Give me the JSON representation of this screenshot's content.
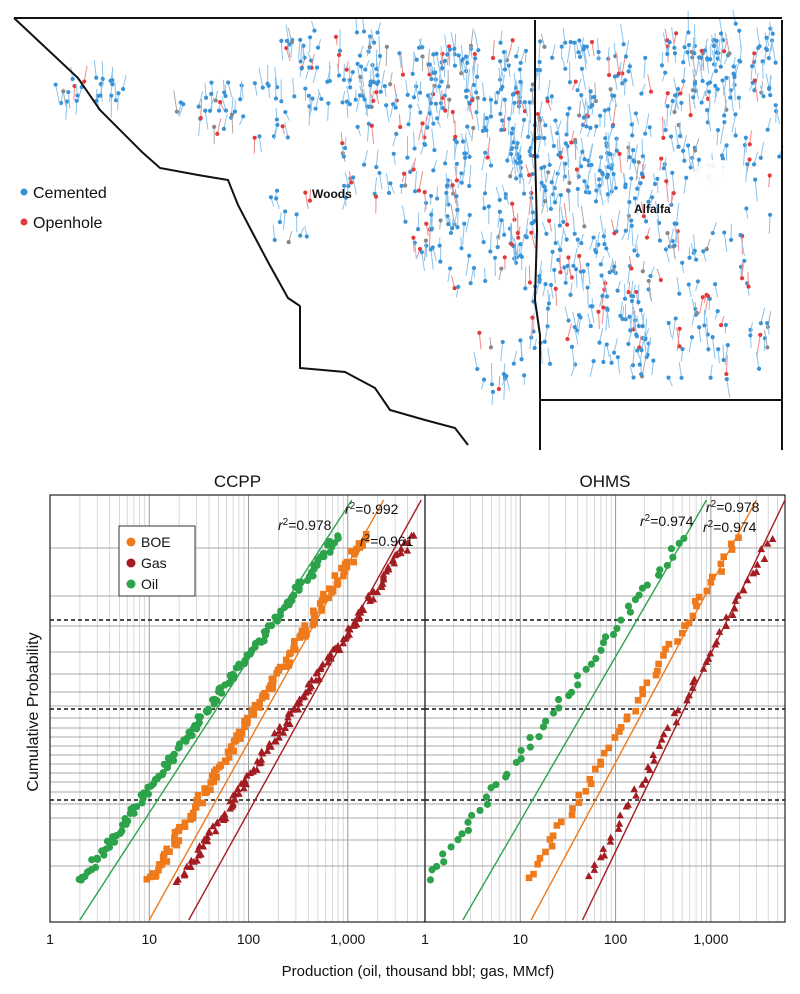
{
  "map": {
    "legend": [
      {
        "label": "Cemented",
        "color": "#3a93d6"
      },
      {
        "label": "Openhole",
        "color": "#e23b3b"
      }
    ],
    "counties": [
      "Woods",
      "Alfalfa"
    ]
  },
  "x_axis_label": "Production (oil, thousand bbl; gas, MMcf)",
  "y_axis_label": "Cumulative Probability",
  "chart_data": [
    {
      "type": "scatter",
      "title": "CCPP",
      "xscale": "log",
      "yscale": "probability",
      "xlim": [
        1,
        6000
      ],
      "xticks": [
        "1",
        "10",
        "100",
        "1,000"
      ],
      "legend_position": "top-left",
      "legend": [
        {
          "name": "BOE",
          "color": "#ee7a1c",
          "marker": "square"
        },
        {
          "name": "Gas",
          "color": "#a31c22",
          "marker": "triangle"
        },
        {
          "name": "Oil",
          "color": "#2ca24a",
          "marker": "circle"
        }
      ],
      "series": [
        {
          "name": "Oil",
          "color": "#2ca24a",
          "marker": "circle",
          "x_min": 2,
          "x_max": 800,
          "fit_x": [
            2,
            1100
          ]
        },
        {
          "name": "BOE",
          "color": "#ee7a1c",
          "marker": "square",
          "x_min": 10,
          "x_max": 1500,
          "fit_x": [
            10,
            2300
          ]
        },
        {
          "name": "Gas",
          "color": "#a31c22",
          "marker": "triangle",
          "x_min": 20,
          "x_max": 4500,
          "fit_x": [
            25,
            5500
          ]
        }
      ],
      "annotations": [
        {
          "r2": "=0.978",
          "series": "Oil"
        },
        {
          "r2": "=0.992",
          "series": "BOE"
        },
        {
          "r2": "=0.961",
          "series": "Gas"
        }
      ]
    },
    {
      "type": "scatter",
      "title": "OHMS",
      "xscale": "log",
      "yscale": "probability",
      "xlim": [
        1,
        6000
      ],
      "xticks": [
        "1",
        "10",
        "100",
        "1,000"
      ],
      "series": [
        {
          "name": "Oil",
          "color": "#2ca24a",
          "marker": "circle",
          "x_min": 1,
          "x_max": 550,
          "fit_x": [
            2.5,
            900
          ]
        },
        {
          "name": "BOE",
          "color": "#ee7a1c",
          "marker": "square",
          "x_min": 12,
          "x_max": 2000,
          "fit_x": [
            13,
            3000
          ]
        },
        {
          "name": "Gas",
          "color": "#a31c22",
          "marker": "triangle",
          "x_min": 50,
          "x_max": 4500,
          "fit_x": [
            45,
            6000
          ]
        }
      ],
      "annotations": [
        {
          "r2": "=0.974",
          "series": "Oil"
        },
        {
          "r2": "=0.978",
          "series": "BOE"
        },
        {
          "r2": "=0.974",
          "series": "Gas"
        }
      ]
    }
  ]
}
